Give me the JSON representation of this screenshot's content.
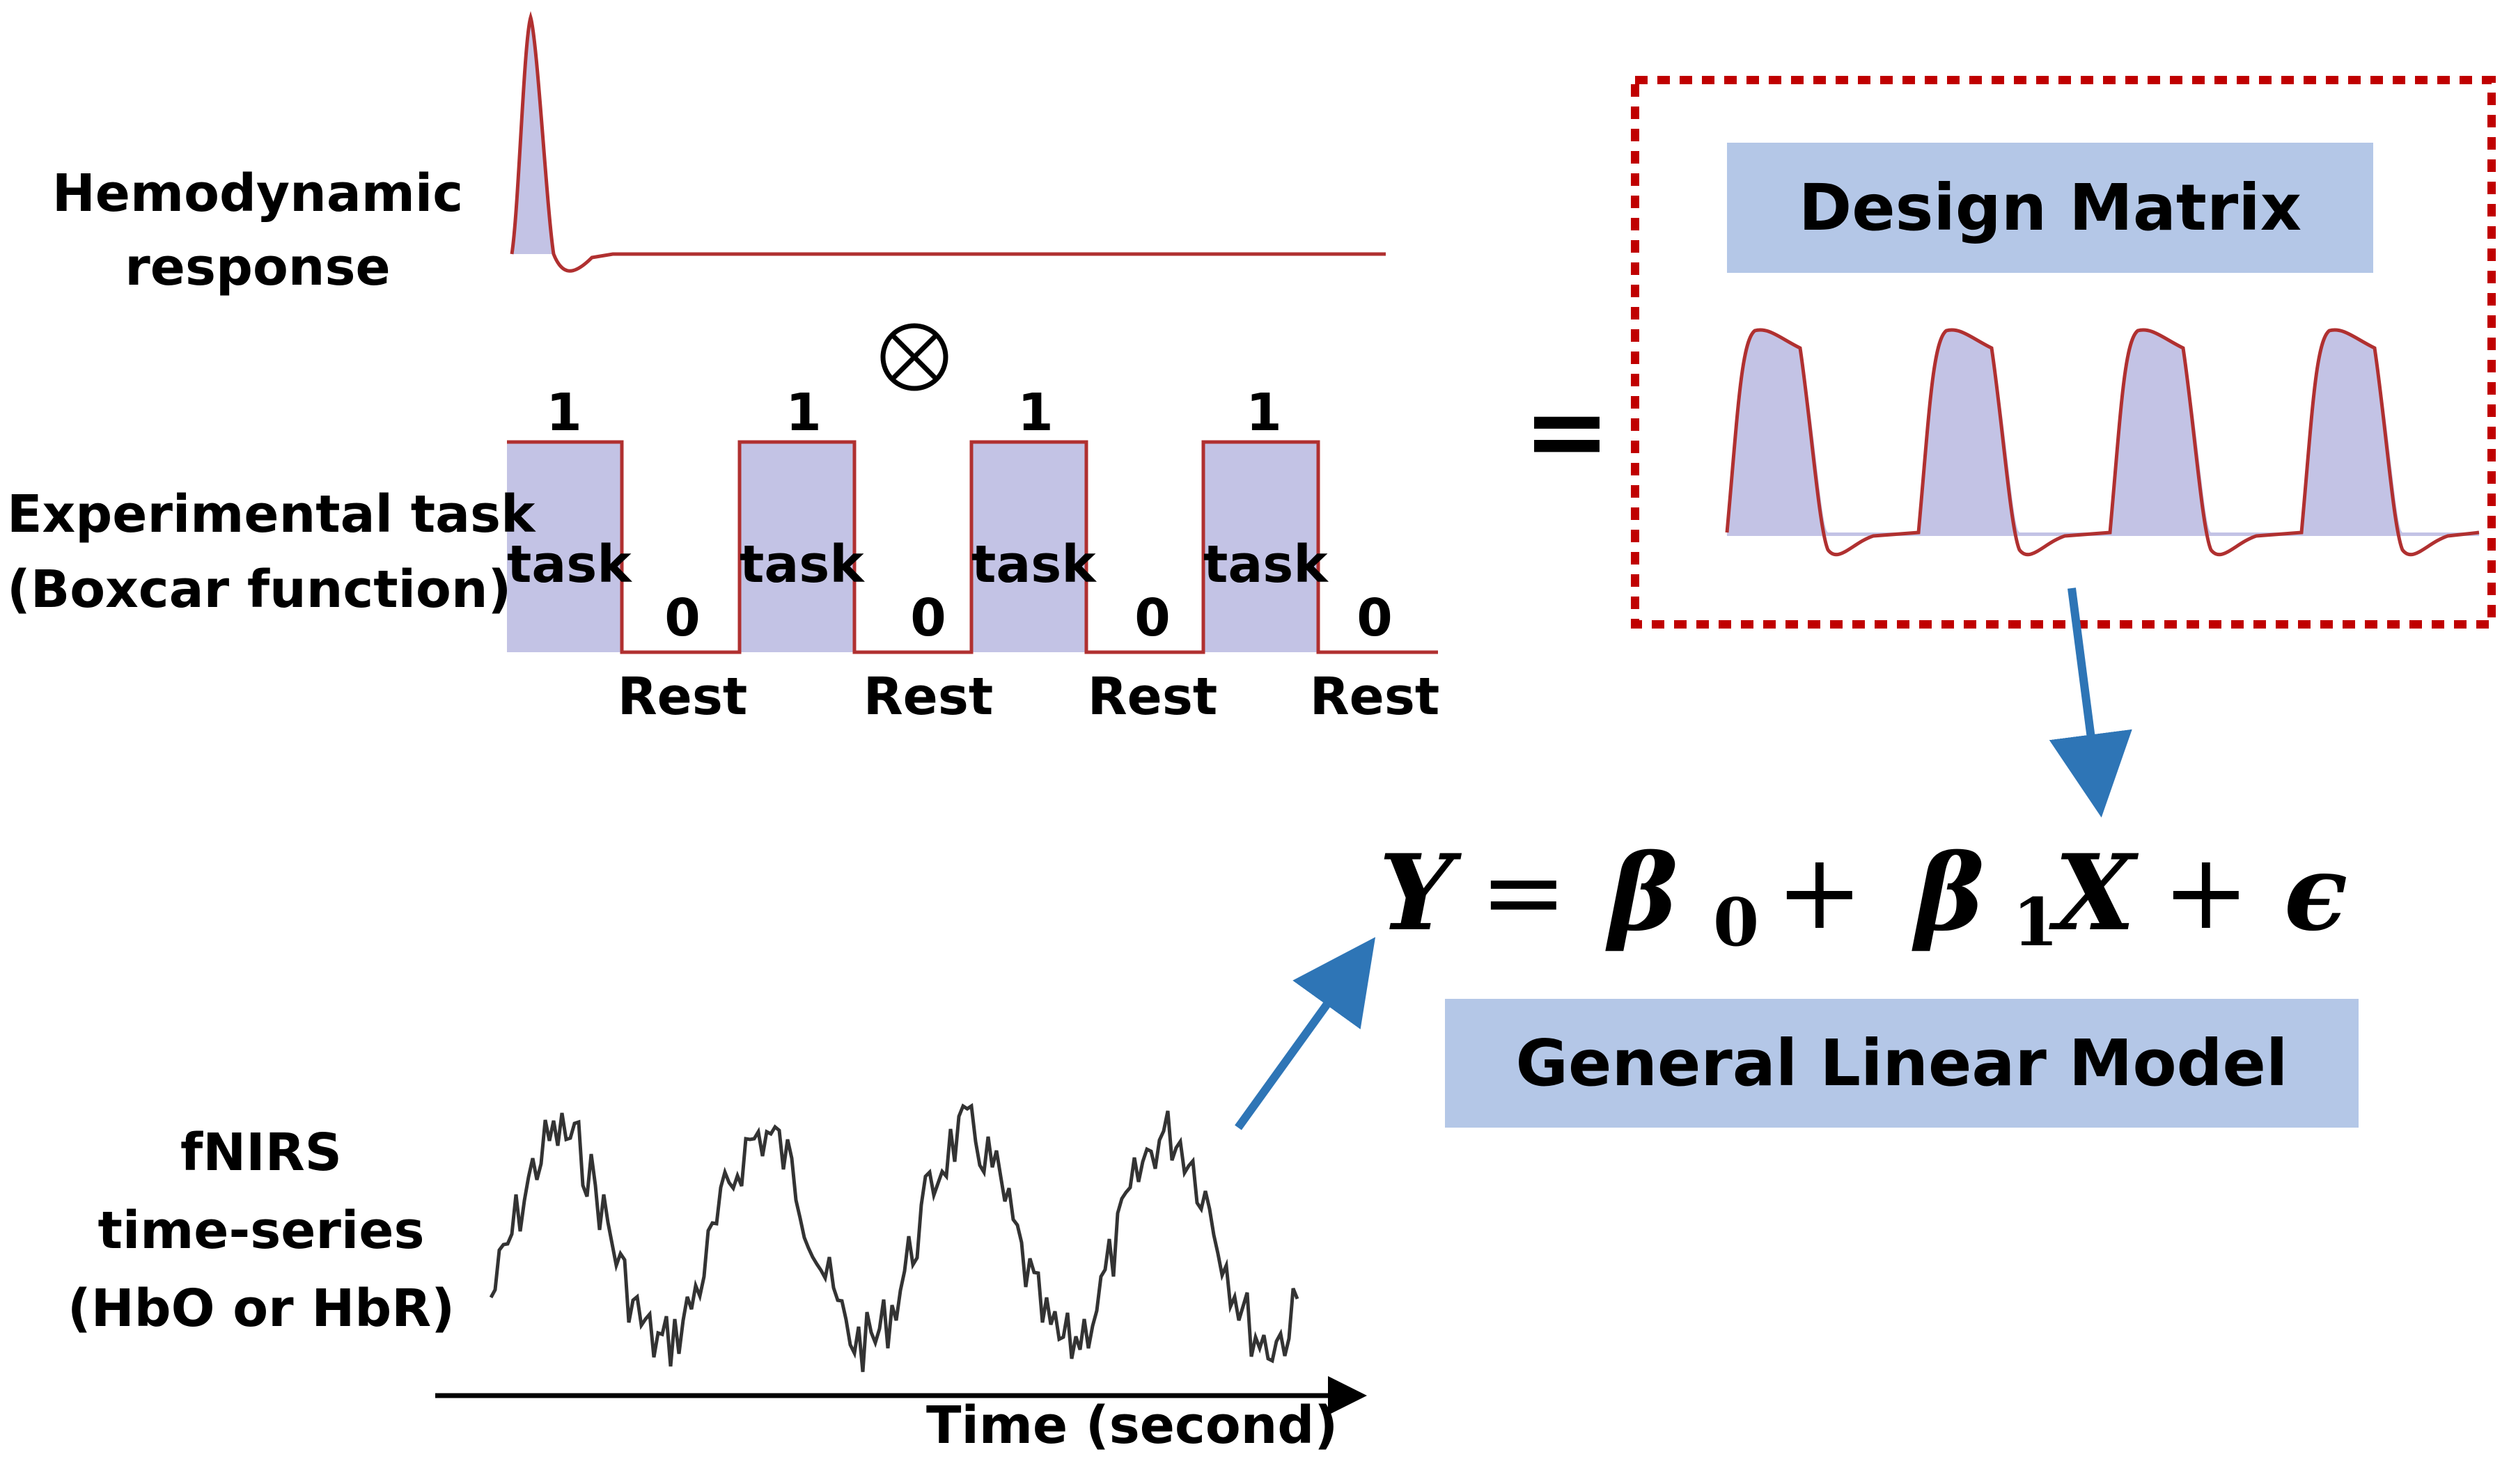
{
  "labels": {
    "hrf_line1": "Hemodynamic",
    "hrf_line2": "response",
    "task_line1": "Experimental task",
    "task_line2": "(Boxcar function)",
    "convolve_symbol": "⊗",
    "equals_symbol": "=",
    "fnirs_line1": "fNIRS",
    "fnirs_line2": "time-series",
    "fnirs_line3": "(HbO or HbR)",
    "time_axis": "Time (second)"
  },
  "boxcar": {
    "blocks": [
      {
        "value": "1",
        "label": "task"
      },
      {
        "value": "1",
        "label": "task"
      },
      {
        "value": "1",
        "label": "task"
      },
      {
        "value": "1",
        "label": "task"
      }
    ],
    "rests": [
      {
        "value": "0",
        "label": "Rest"
      },
      {
        "value": "0",
        "label": "Rest"
      },
      {
        "value": "0",
        "label": "Rest"
      },
      {
        "value": "0",
        "label": "Rest"
      }
    ]
  },
  "design_matrix": {
    "title": "Design Matrix"
  },
  "glm": {
    "eq_Y": "Y",
    "eq_eq": "=",
    "eq_b0": "β",
    "eq_sub0": "0",
    "eq_plus1": "+",
    "eq_b1": "β",
    "eq_sub1": "1",
    "eq_X": "X",
    "eq_plus2": "+",
    "eq_eps": "ϵ",
    "title": "General Linear Model"
  },
  "colors": {
    "fill": "#c3c3e5",
    "curve": "#c0392b",
    "box_title_bg": "#b4c7e7",
    "dashed_border": "#c00000",
    "arrow": "#2e75b6"
  }
}
